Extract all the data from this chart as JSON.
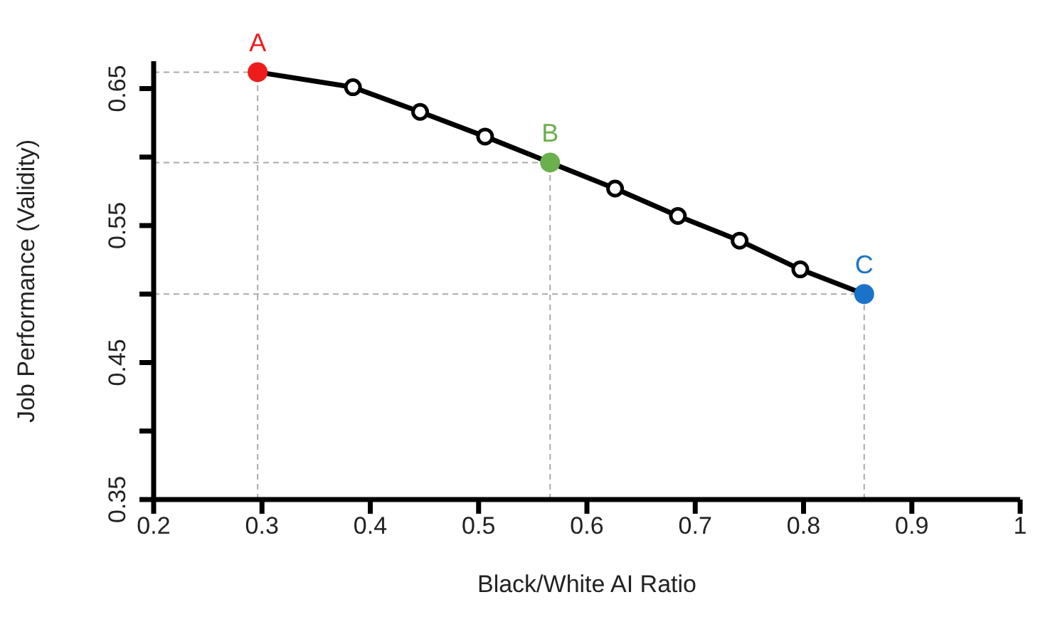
{
  "chart_data": {
    "type": "line",
    "xlabel": "Black/White AI Ratio",
    "ylabel": "Job Performance (Validity)",
    "xlim": [
      0.2,
      1
    ],
    "xticks": [
      0.2,
      0.3,
      0.4,
      0.5,
      0.6,
      0.7,
      0.8,
      0.9,
      1
    ],
    "ylim": [
      0.35,
      0.67
    ],
    "yticks": [
      0.35,
      {
        "value": 0.4,
        "label": null
      },
      0.45,
      {
        "value": 0.5,
        "label": null
      },
      0.55,
      {
        "value": 0.6,
        "label": null
      },
      0.65
    ],
    "grid": false,
    "legend": false,
    "line_style": "solid",
    "series": [
      {
        "color": "#000000",
        "marker": "none",
        "x": [
          0.296,
          0.384,
          0.446,
          0.506,
          0.566,
          0.626,
          0.684,
          0.741,
          0.797,
          0.856
        ],
        "values": [
          0.662,
          0.651,
          0.633,
          0.615,
          0.596,
          0.577,
          0.557,
          0.539,
          0.518,
          0.5
        ]
      },
      {
        "type": "scatter",
        "color": "#000000",
        "marker": "circle",
        "x": [
          0.384,
          0.446,
          0.506,
          0.626,
          0.684,
          0.741,
          0.797
        ],
        "values": [
          0.651,
          0.633,
          0.615,
          0.577,
          0.557,
          0.539,
          0.518
        ]
      },
      {
        "type": "scatter",
        "name": "A",
        "color": "#ee1c1c",
        "marker": "circle",
        "x": [
          0.296
        ],
        "values": [
          0.662
        ]
      },
      {
        "type": "scatter",
        "name": "B",
        "color": "#6ab04c",
        "marker": "circle",
        "x": [
          0.566
        ],
        "values": [
          0.596
        ]
      },
      {
        "type": "scatter",
        "name": "C",
        "color": "#1a73c8",
        "marker": "circle",
        "x": [
          0.856
        ],
        "values": [
          0.5
        ]
      }
    ],
    "ref_lines": [
      {
        "axis": "x",
        "value": 0.296,
        "color": "#aaaaaa",
        "line_style": "dashed"
      },
      {
        "axis": "x",
        "value": 0.566,
        "color": "#aaaaaa",
        "line_style": "dashed"
      },
      {
        "axis": "x",
        "value": 0.856,
        "color": "#aaaaaa",
        "line_style": "dashed"
      },
      {
        "axis": "y",
        "value": 0.662,
        "color": "#aaaaaa",
        "line_style": "dashed"
      },
      {
        "axis": "y",
        "value": 0.596,
        "color": "#aaaaaa",
        "line_style": "dashed"
      },
      {
        "axis": "y",
        "value": 0.5,
        "color": "#aaaaaa",
        "line_style": "dashed"
      }
    ]
  }
}
